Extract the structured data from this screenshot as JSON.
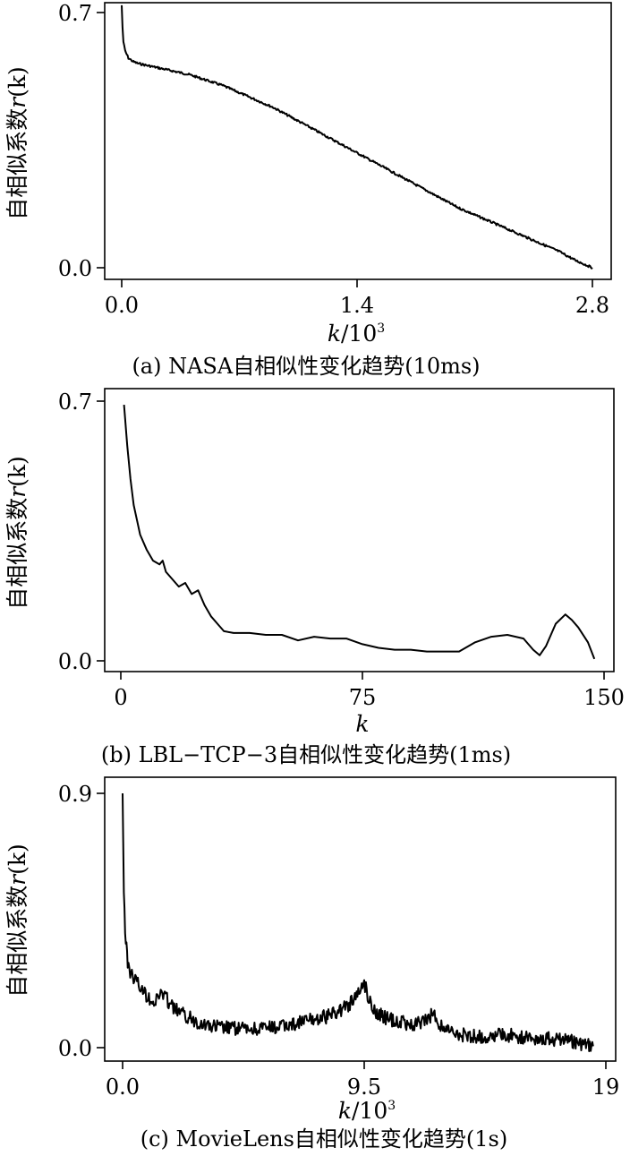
{
  "chart_data": [
    {
      "type": "line",
      "caption": "(a) NASA自相似性变化趋势(10ms)",
      "xlabel_var": "k",
      "xlabel_rest": "/10",
      "xlabel_sup": "3",
      "ylabel_text": "自相似系数",
      "ylabel_var": "r",
      "ylabel_arg": "(k)",
      "xlim": [
        0,
        2.8
      ],
      "ylim": [
        0,
        0.7
      ],
      "xticks": [
        0,
        1.4,
        2.8
      ],
      "xtick_labels": [
        "0.0",
        "1.4",
        "2.8"
      ],
      "yticks": [
        0,
        0.7
      ],
      "ytick_labels": [
        "0.0",
        "0.7"
      ],
      "grid": false,
      "series": [
        {
          "x": [
            0,
            0.005,
            0.01,
            0.02,
            0.04,
            0.07,
            0.1,
            0.15,
            0.2,
            0.3,
            0.4,
            0.5,
            0.6,
            0.7,
            0.8,
            0.9,
            1.0,
            1.1,
            1.2,
            1.3,
            1.4,
            1.5,
            1.6,
            1.7,
            1.8,
            1.9,
            2.0,
            2.1,
            2.2,
            2.3,
            2.4,
            2.5,
            2.6,
            2.7,
            2.8
          ],
          "y": [
            0.72,
            0.66,
            0.62,
            0.595,
            0.575,
            0.565,
            0.56,
            0.555,
            0.55,
            0.54,
            0.53,
            0.515,
            0.5,
            0.48,
            0.46,
            0.44,
            0.415,
            0.39,
            0.365,
            0.34,
            0.315,
            0.29,
            0.265,
            0.24,
            0.215,
            0.19,
            0.165,
            0.145,
            0.125,
            0.105,
            0.085,
            0.065,
            0.045,
            0.02,
            0.0
          ]
        }
      ]
    },
    {
      "type": "line",
      "caption": "(b) LBL−TCP−3自相似性变化趋势(1ms)",
      "xlabel_var": "k",
      "xlabel_rest": "",
      "xlabel_sup": "",
      "ylabel_text": "自相似系数",
      "ylabel_var": "r",
      "ylabel_arg": "(k)",
      "xlim": [
        0,
        150
      ],
      "ylim": [
        0,
        0.7
      ],
      "xticks": [
        0,
        75,
        150
      ],
      "xtick_labels": [
        "0",
        "75",
        "150"
      ],
      "yticks": [
        0,
        0.7
      ],
      "ytick_labels": [
        "0.0",
        "0.7"
      ],
      "grid": false,
      "series": [
        {
          "x": [
            1,
            2,
            3,
            4,
            5,
            6,
            8,
            10,
            12,
            13,
            14,
            16,
            18,
            20,
            22,
            24,
            26,
            28,
            30,
            32,
            35,
            40,
            45,
            50,
            55,
            60,
            65,
            70,
            75,
            80,
            85,
            90,
            95,
            100,
            105,
            110,
            115,
            120,
            125,
            128,
            130,
            132,
            135,
            138,
            140,
            142,
            145,
            147
          ],
          "y": [
            0.69,
            0.58,
            0.49,
            0.42,
            0.38,
            0.34,
            0.3,
            0.27,
            0.26,
            0.27,
            0.24,
            0.22,
            0.2,
            0.21,
            0.18,
            0.19,
            0.15,
            0.12,
            0.1,
            0.08,
            0.075,
            0.075,
            0.07,
            0.07,
            0.055,
            0.065,
            0.06,
            0.06,
            0.045,
            0.035,
            0.03,
            0.03,
            0.025,
            0.025,
            0.025,
            0.05,
            0.065,
            0.07,
            0.06,
            0.03,
            0.015,
            0.04,
            0.1,
            0.125,
            0.11,
            0.09,
            0.05,
            0.005
          ]
        }
      ]
    },
    {
      "type": "line",
      "caption": "(c) MovieLens自相似性变化趋势(1s)",
      "xlabel_var": "k",
      "xlabel_rest": "/10",
      "xlabel_sup": "3",
      "ylabel_text": "自相似系数",
      "ylabel_var": "r",
      "ylabel_arg": "(k)",
      "xlim": [
        0,
        19
      ],
      "ylim": [
        0,
        0.9
      ],
      "xticks": [
        0,
        9.5,
        19
      ],
      "xtick_labels": [
        "0.0",
        "9.5",
        "19"
      ],
      "yticks": [
        0,
        0.9
      ],
      "ytick_labels": [
        "0.0",
        "0.9"
      ],
      "grid": false,
      "series": [
        {
          "x": [
            0.0,
            0.05,
            0.1,
            0.15,
            0.2,
            0.3,
            0.5,
            0.8,
            1.0,
            1.3,
            1.5,
            2.0,
            2.5,
            3.0,
            3.5,
            4.0,
            5.0,
            6.0,
            7.0,
            7.5,
            8.0,
            8.5,
            9.0,
            9.3,
            9.5,
            9.7,
            10.0,
            10.5,
            11.0,
            11.5,
            12.0,
            12.2,
            12.5,
            13.0,
            13.5,
            14.0,
            14.5,
            15.0,
            15.5,
            16.0,
            16.5,
            17.0,
            17.5,
            18.0,
            18.5
          ],
          "y": [
            0.9,
            0.55,
            0.42,
            0.35,
            0.3,
            0.27,
            0.24,
            0.2,
            0.18,
            0.16,
            0.2,
            0.14,
            0.11,
            0.09,
            0.075,
            0.07,
            0.065,
            0.07,
            0.09,
            0.1,
            0.11,
            0.13,
            0.16,
            0.2,
            0.23,
            0.17,
            0.12,
            0.1,
            0.09,
            0.08,
            0.1,
            0.12,
            0.08,
            0.05,
            0.045,
            0.04,
            0.04,
            0.045,
            0.04,
            0.035,
            0.035,
            0.03,
            0.025,
            0.015,
            0.005
          ]
        }
      ]
    }
  ]
}
